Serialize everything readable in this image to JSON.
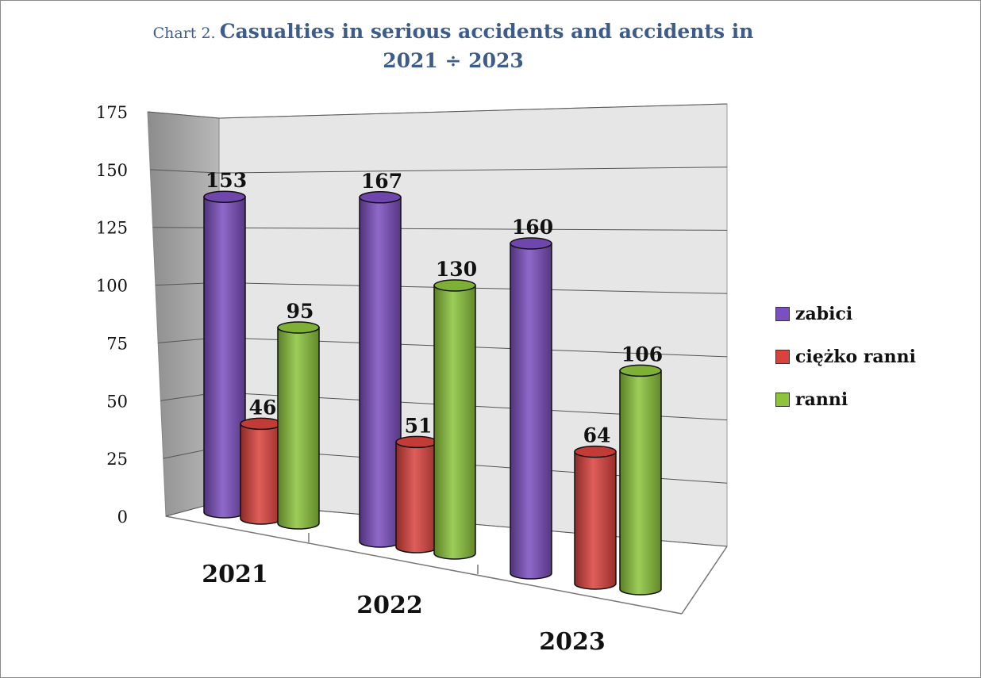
{
  "title": {
    "prefix": "Chart 2.",
    "main": "Casualties in serious accidents and accidents in 2021 ÷ 2023"
  },
  "colors": {
    "zabici": "#7b4fbf",
    "ciezko_ranni": "#d9423d",
    "ranni": "#8cc43c",
    "side_wall": "#9a9a9a",
    "back_wall": "#e6e6e6"
  },
  "chart_data": {
    "type": "bar",
    "title": "Chart 2. Casualties in serious accidents and accidents in 2021 ÷ 2023",
    "categories": [
      "2021",
      "2022",
      "2023"
    ],
    "series": [
      {
        "name": "zabici",
        "values": [
          153,
          167,
          160
        ]
      },
      {
        "name": "ciężko ranni",
        "values": [
          46,
          51,
          64
        ]
      },
      {
        "name": "ranni",
        "values": [
          95,
          130,
          106
        ]
      }
    ],
    "y_ticks": [
      "0",
      "25",
      "50",
      "75",
      "100",
      "125",
      "150",
      "175"
    ],
    "ylim": [
      0,
      175
    ],
    "grid": true,
    "legend_position": "right",
    "style": "3d-cylinder"
  }
}
